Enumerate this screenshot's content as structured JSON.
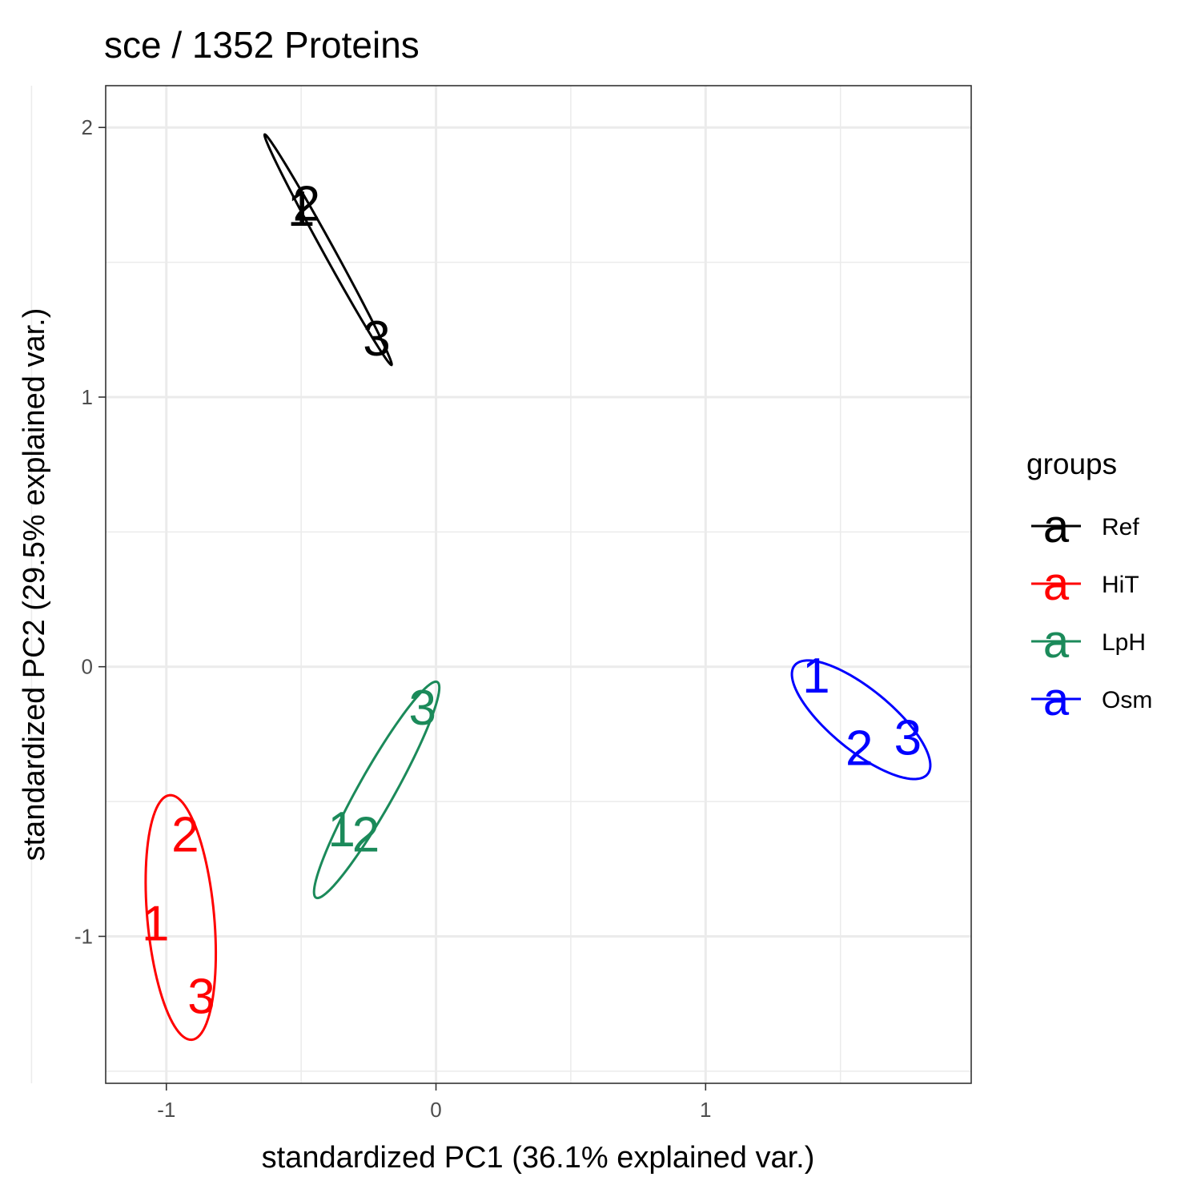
{
  "chart_data": {
    "type": "scatter",
    "title": "sce /  1352  Proteins",
    "xlabel": "standardized PC1 (36.1% explained var.)",
    "ylabel": "standardized PC2 (29.5% explained var.)",
    "xlim": [
      -1.225,
      1.985
    ],
    "ylim": [
      -1.545,
      2.155
    ],
    "x_ticks": [
      -1,
      0,
      1
    ],
    "x_tick_labels": [
      "-1",
      "0",
      "1"
    ],
    "y_ticks": [
      -1,
      0,
      1,
      2
    ],
    "y_tick_labels": [
      "-1",
      "0",
      "1",
      "2"
    ],
    "x_minor": [
      -1.5,
      -0.5,
      0.5,
      1.5
    ],
    "y_minor": [
      -1.5,
      -0.5,
      0.5,
      1.5
    ],
    "grid": true,
    "legend": {
      "title": "groups",
      "placement": "right",
      "key_glyph": "a"
    },
    "ellipse_level": 0.68,
    "series": [
      {
        "name": "Ref",
        "color": "#000000",
        "points": [
          {
            "label": "1",
            "x": -0.5,
            "y": 1.7
          },
          {
            "label": "2",
            "x": -0.48,
            "y": 1.72
          },
          {
            "label": "3",
            "x": -0.22,
            "y": 1.22
          }
        ]
      },
      {
        "name": "HiT",
        "color": "#ff0000",
        "points": [
          {
            "label": "1",
            "x": -1.04,
            "y": -0.95
          },
          {
            "label": "2",
            "x": -0.93,
            "y": -0.62
          },
          {
            "label": "3",
            "x": -0.87,
            "y": -1.22
          }
        ]
      },
      {
        "name": "LpH",
        "color": "#1b8a5a",
        "points": [
          {
            "label": "1",
            "x": -0.35,
            "y": -0.6
          },
          {
            "label": "2",
            "x": -0.26,
            "y": -0.62
          },
          {
            "label": "3",
            "x": -0.05,
            "y": -0.15
          }
        ]
      },
      {
        "name": "Osm",
        "color": "#0000ff",
        "points": [
          {
            "label": "1",
            "x": 1.41,
            "y": -0.03
          },
          {
            "label": "2",
            "x": 1.57,
            "y": -0.3
          },
          {
            "label": "3",
            "x": 1.75,
            "y": -0.26
          }
        ]
      }
    ]
  }
}
